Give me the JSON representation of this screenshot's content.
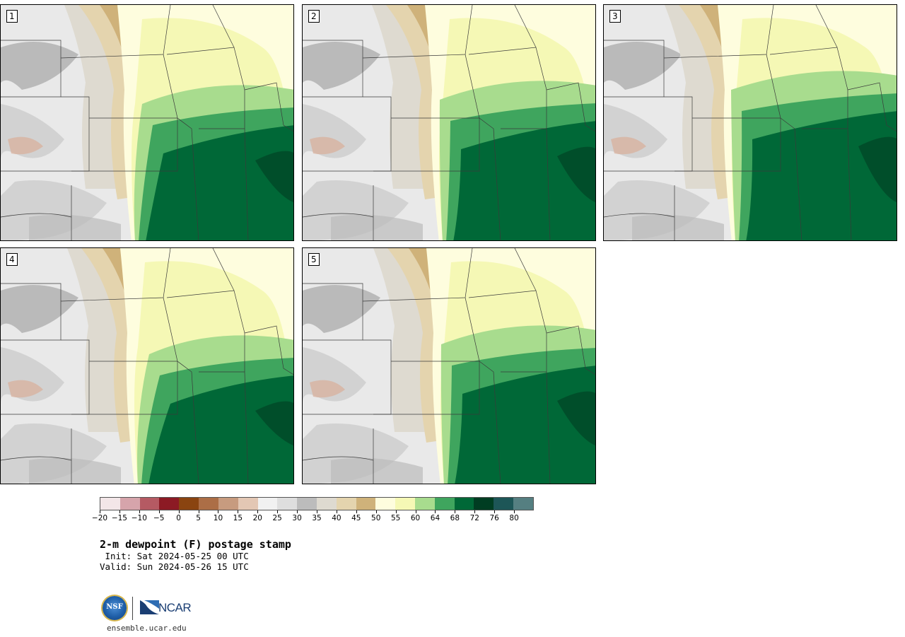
{
  "panels": [
    {
      "label": "1"
    },
    {
      "label": "2"
    },
    {
      "label": "3"
    },
    {
      "label": "4"
    },
    {
      "label": "5"
    }
  ],
  "colorbar": {
    "colors": [
      "#f3e6e8",
      "#d6a4ab",
      "#b55a63",
      "#8c1a24",
      "#8a4410",
      "#ac6e46",
      "#c79b7f",
      "#e3c7b4",
      "#f1f1f1",
      "#dedede",
      "#bcbcbc",
      "#dedad0",
      "#e4d4ae",
      "#cfb27a",
      "#fefdde",
      "#f5f8b5",
      "#a8dc8e",
      "#3fa55e",
      "#006837",
      "#003d22",
      "#1d5657",
      "#557f81"
    ],
    "ticks": [
      "−20",
      "−15",
      "−10",
      "−5",
      "0",
      "5",
      "10",
      "15",
      "20",
      "25",
      "30",
      "35",
      "40",
      "45",
      "50",
      "55",
      "60",
      "64",
      "68",
      "72",
      "76",
      "80"
    ]
  },
  "title": "2-m dewpoint (F) postage stamp",
  "init": " Init: Sat 2024-05-25 00 UTC",
  "valid": "Valid: Sun 2024-05-26 15 UTC",
  "logos": {
    "nsf": "NSF",
    "ncar": "NCAR"
  },
  "site": "ensemble.ucar.edu"
}
